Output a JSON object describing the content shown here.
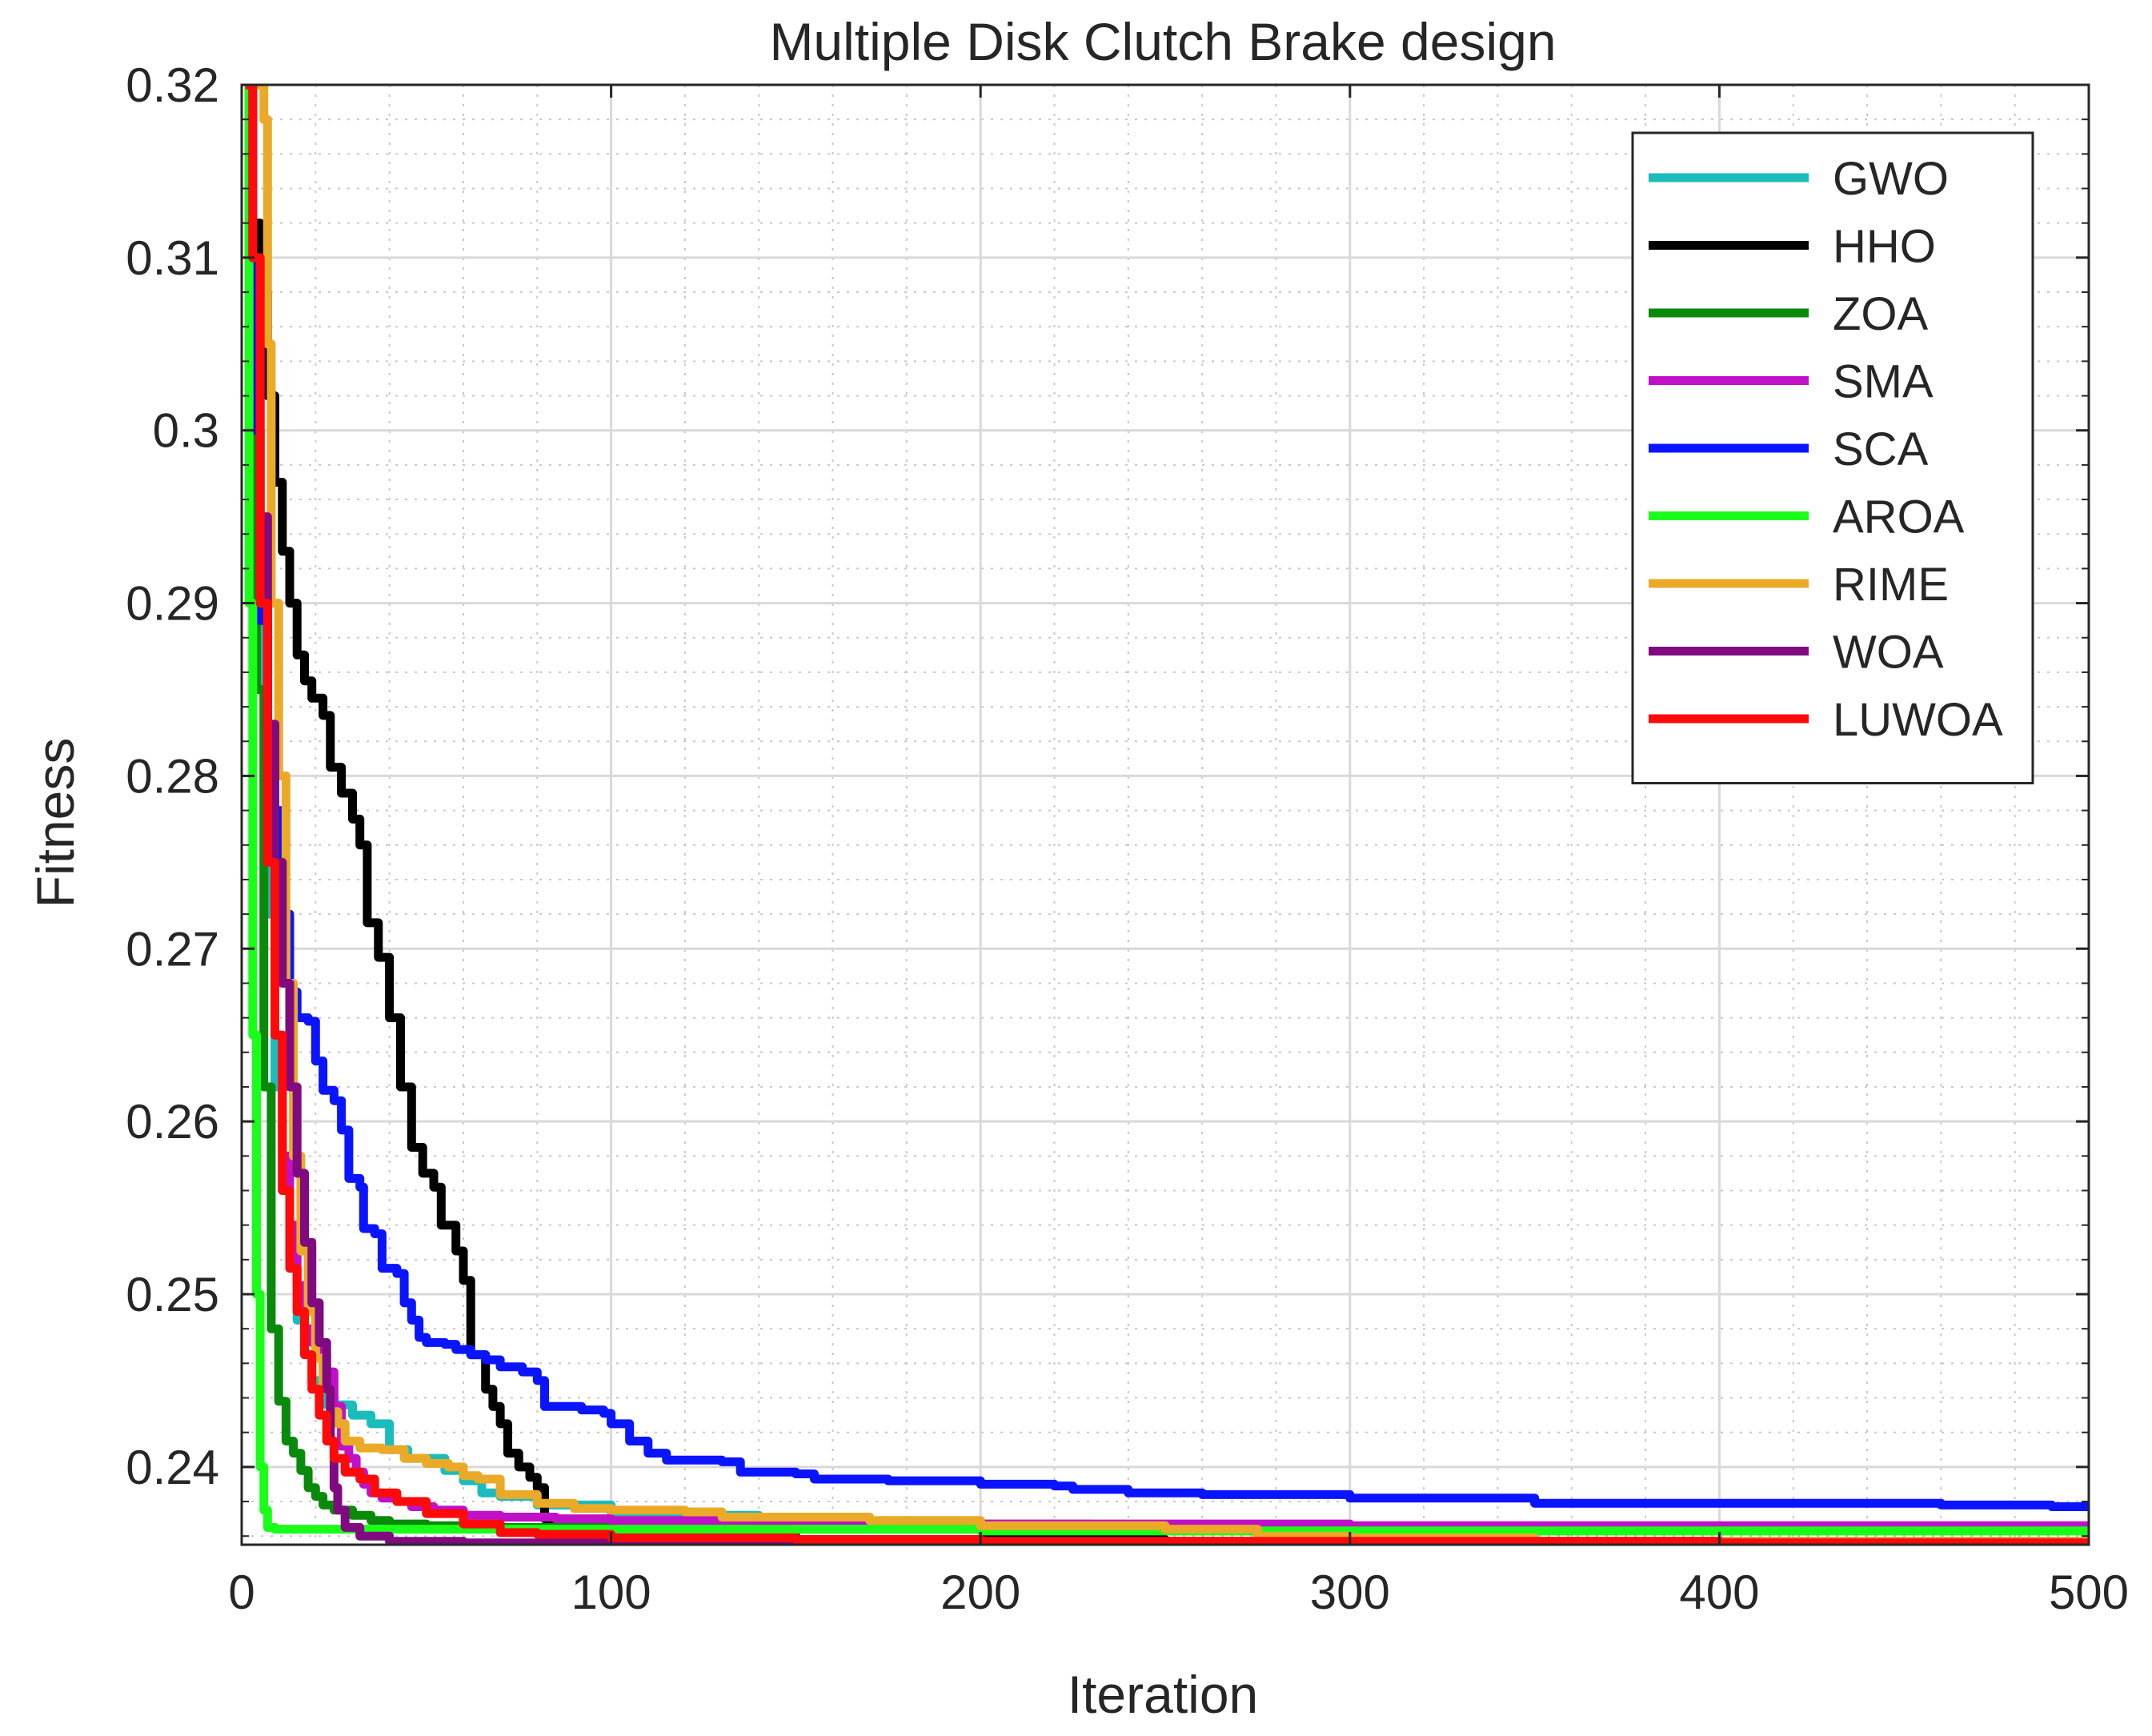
{
  "chart_data": {
    "type": "line",
    "title": "Multiple Disk Clutch Brake design",
    "xlabel": "Iteration",
    "ylabel": "Fitness",
    "xlim": [
      0,
      500
    ],
    "ylim": [
      0.2355,
      0.32
    ],
    "xticks": [
      0,
      100,
      200,
      300,
      400,
      500
    ],
    "yticks": [
      0.24,
      0.25,
      0.26,
      0.27,
      0.28,
      0.29,
      0.3,
      0.31,
      0.32
    ],
    "xtick_labels": [
      "0",
      "100",
      "200",
      "300",
      "400",
      "500"
    ],
    "ytick_labels": [
      "0.24",
      "0.25",
      "0.26",
      "0.27",
      "0.28",
      "0.29",
      "0.3",
      "0.31",
      "0.32"
    ],
    "grid": true,
    "minor_grid": true,
    "legend_position": "top-right",
    "series": [
      {
        "name": "GWO",
        "color": "#1abcbc",
        "points": [
          [
            1,
            0.32
          ],
          [
            3,
            0.3
          ],
          [
            5,
            0.285
          ],
          [
            7,
            0.272
          ],
          [
            9,
            0.262
          ],
          [
            11,
            0.256
          ],
          [
            13,
            0.2515
          ],
          [
            15,
            0.2485
          ],
          [
            17,
            0.2465
          ],
          [
            19,
            0.245
          ],
          [
            21,
            0.2442
          ],
          [
            23,
            0.2436
          ],
          [
            30,
            0.243
          ],
          [
            35,
            0.2425
          ],
          [
            40,
            0.241
          ],
          [
            45,
            0.2405
          ],
          [
            55,
            0.2398
          ],
          [
            60,
            0.2392
          ],
          [
            65,
            0.2385
          ],
          [
            70,
            0.2383
          ],
          [
            80,
            0.2378
          ],
          [
            100,
            0.2374
          ],
          [
            120,
            0.2372
          ],
          [
            140,
            0.2368
          ],
          [
            180,
            0.2367
          ],
          [
            230,
            0.2366
          ],
          [
            300,
            0.2365
          ],
          [
            400,
            0.2364
          ],
          [
            500,
            0.2364
          ]
        ]
      },
      {
        "name": "HHO",
        "color": "#000000",
        "points": [
          [
            1,
            0.32
          ],
          [
            3,
            0.312
          ],
          [
            5,
            0.308
          ],
          [
            7,
            0.302
          ],
          [
            9,
            0.297
          ],
          [
            11,
            0.293
          ],
          [
            13,
            0.29
          ],
          [
            15,
            0.287
          ],
          [
            17,
            0.2855
          ],
          [
            19,
            0.2845
          ],
          [
            22,
            0.2835
          ],
          [
            24,
            0.2805
          ],
          [
            27,
            0.279
          ],
          [
            30,
            0.2775
          ],
          [
            32,
            0.276
          ],
          [
            34,
            0.2715
          ],
          [
            37,
            0.2695
          ],
          [
            40,
            0.266
          ],
          [
            43,
            0.262
          ],
          [
            46,
            0.2585
          ],
          [
            49,
            0.257
          ],
          [
            52,
            0.2562
          ],
          [
            54,
            0.254
          ],
          [
            58,
            0.2525
          ],
          [
            60,
            0.2508
          ],
          [
            62,
            0.2465
          ],
          [
            66,
            0.2445
          ],
          [
            68,
            0.2435
          ],
          [
            70,
            0.2425
          ],
          [
            72,
            0.2408
          ],
          [
            75,
            0.24
          ],
          [
            78,
            0.2394
          ],
          [
            80,
            0.2388
          ],
          [
            82,
            0.237
          ],
          [
            84,
            0.2365
          ],
          [
            100,
            0.236
          ],
          [
            150,
            0.2358
          ],
          [
            250,
            0.2357
          ],
          [
            500,
            0.2357
          ]
        ]
      },
      {
        "name": "ZOA",
        "color": "#0a8a0a",
        "points": [
          [
            1,
            0.32
          ],
          [
            2,
            0.31
          ],
          [
            4,
            0.285
          ],
          [
            6,
            0.262
          ],
          [
            8,
            0.248
          ],
          [
            10,
            0.2438
          ],
          [
            12,
            0.2415
          ],
          [
            14,
            0.2408
          ],
          [
            16,
            0.2398
          ],
          [
            18,
            0.2388
          ],
          [
            20,
            0.2383
          ],
          [
            22,
            0.2378
          ],
          [
            25,
            0.2375
          ],
          [
            30,
            0.2372
          ],
          [
            35,
            0.2369
          ],
          [
            40,
            0.2367
          ],
          [
            50,
            0.2366
          ],
          [
            70,
            0.2365
          ],
          [
            100,
            0.2364
          ],
          [
            200,
            0.2363
          ],
          [
            500,
            0.2363
          ]
        ]
      },
      {
        "name": "SMA",
        "color": "#c010c8",
        "points": [
          [
            1,
            0.32
          ],
          [
            3,
            0.305
          ],
          [
            5,
            0.29
          ],
          [
            7,
            0.275
          ],
          [
            9,
            0.265
          ],
          [
            11,
            0.258
          ],
          [
            13,
            0.254
          ],
          [
            15,
            0.2505
          ],
          [
            17,
            0.248
          ],
          [
            19,
            0.2472
          ],
          [
            21,
            0.2465
          ],
          [
            23,
            0.2455
          ],
          [
            25,
            0.2435
          ],
          [
            27,
            0.2412
          ],
          [
            29,
            0.2405
          ],
          [
            31,
            0.2397
          ],
          [
            33,
            0.239
          ],
          [
            35,
            0.2385
          ],
          [
            38,
            0.2382
          ],
          [
            42,
            0.238
          ],
          [
            46,
            0.2377
          ],
          [
            52,
            0.2375
          ],
          [
            60,
            0.2372
          ],
          [
            70,
            0.2371
          ],
          [
            85,
            0.237
          ],
          [
            100,
            0.2369
          ],
          [
            150,
            0.2368
          ],
          [
            200,
            0.2367
          ],
          [
            300,
            0.2366
          ],
          [
            500,
            0.2366
          ]
        ]
      },
      {
        "name": "SCA",
        "color": "#0a14ff",
        "points": [
          [
            1,
            0.32
          ],
          [
            3,
            0.3
          ],
          [
            5,
            0.289
          ],
          [
            7,
            0.281
          ],
          [
            9,
            0.278
          ],
          [
            11,
            0.272
          ],
          [
            13,
            0.2675
          ],
          [
            15,
            0.266
          ],
          [
            18,
            0.2658
          ],
          [
            20,
            0.2635
          ],
          [
            22,
            0.2618
          ],
          [
            25,
            0.2612
          ],
          [
            27,
            0.2595
          ],
          [
            29,
            0.2567
          ],
          [
            32,
            0.2562
          ],
          [
            33,
            0.2538
          ],
          [
            36,
            0.2535
          ],
          [
            38,
            0.2515
          ],
          [
            42,
            0.2512
          ],
          [
            44,
            0.2495
          ],
          [
            46,
            0.2485
          ],
          [
            48,
            0.2475
          ],
          [
            50,
            0.2472
          ],
          [
            55,
            0.2471
          ],
          [
            58,
            0.2468
          ],
          [
            62,
            0.2465
          ],
          [
            66,
            0.2462
          ],
          [
            70,
            0.2458
          ],
          [
            76,
            0.2455
          ],
          [
            80,
            0.245
          ],
          [
            82,
            0.2435
          ],
          [
            88,
            0.2435
          ],
          [
            92,
            0.2433
          ],
          [
            98,
            0.2431
          ],
          [
            100,
            0.2425
          ],
          [
            105,
            0.2415
          ],
          [
            110,
            0.2408
          ],
          [
            115,
            0.2404
          ],
          [
            130,
            0.2403
          ],
          [
            135,
            0.2397
          ],
          [
            150,
            0.2396
          ],
          [
            155,
            0.2393
          ],
          [
            175,
            0.2392
          ],
          [
            200,
            0.239
          ],
          [
            220,
            0.2389
          ],
          [
            225,
            0.2387
          ],
          [
            240,
            0.2385
          ],
          [
            260,
            0.2384
          ],
          [
            280,
            0.2384
          ],
          [
            300,
            0.2382
          ],
          [
            330,
            0.2382
          ],
          [
            350,
            0.2379
          ],
          [
            400,
            0.2379
          ],
          [
            460,
            0.2378
          ],
          [
            490,
            0.2377
          ],
          [
            500,
            0.2377
          ]
        ]
      },
      {
        "name": "AROA",
        "color": "#1aff1a",
        "points": [
          [
            1,
            0.32
          ],
          [
            2,
            0.29
          ],
          [
            3,
            0.265
          ],
          [
            4,
            0.25
          ],
          [
            5,
            0.24
          ],
          [
            6,
            0.2375
          ],
          [
            7,
            0.2365
          ],
          [
            9,
            0.2364
          ],
          [
            50,
            0.2364
          ],
          [
            100,
            0.2364
          ],
          [
            200,
            0.2363
          ],
          [
            300,
            0.2363
          ],
          [
            400,
            0.2363
          ],
          [
            500,
            0.2363
          ]
        ]
      },
      {
        "name": "RIME",
        "color": "#eaaa28",
        "points": [
          [
            2,
            0.32
          ],
          [
            4,
            0.32
          ],
          [
            6,
            0.318
          ],
          [
            7,
            0.305
          ],
          [
            8,
            0.29
          ],
          [
            10,
            0.28
          ],
          [
            12,
            0.268
          ],
          [
            14,
            0.258
          ],
          [
            16,
            0.2525
          ],
          [
            18,
            0.249
          ],
          [
            20,
            0.2463
          ],
          [
            22,
            0.2445
          ],
          [
            24,
            0.2432
          ],
          [
            26,
            0.2425
          ],
          [
            28,
            0.2415
          ],
          [
            32,
            0.2411
          ],
          [
            38,
            0.241
          ],
          [
            44,
            0.2405
          ],
          [
            50,
            0.2402
          ],
          [
            56,
            0.24
          ],
          [
            60,
            0.2395
          ],
          [
            64,
            0.2393
          ],
          [
            70,
            0.2384
          ],
          [
            80,
            0.2379
          ],
          [
            90,
            0.2376
          ],
          [
            100,
            0.2375
          ],
          [
            120,
            0.2374
          ],
          [
            130,
            0.2371
          ],
          [
            150,
            0.2371
          ],
          [
            170,
            0.2369
          ],
          [
            200,
            0.2366
          ],
          [
            250,
            0.2364
          ],
          [
            275,
            0.236
          ],
          [
            300,
            0.2359
          ],
          [
            350,
            0.2357
          ],
          [
            400,
            0.2357
          ],
          [
            500,
            0.2356
          ]
        ]
      },
      {
        "name": "WOA",
        "color": "#800a80",
        "points": [
          [
            1,
            0.32
          ],
          [
            3,
            0.31
          ],
          [
            5,
            0.295
          ],
          [
            7,
            0.283
          ],
          [
            9,
            0.275
          ],
          [
            11,
            0.268
          ],
          [
            13,
            0.262
          ],
          [
            15,
            0.257
          ],
          [
            17,
            0.253
          ],
          [
            19,
            0.2495
          ],
          [
            21,
            0.2472
          ],
          [
            23,
            0.2445
          ],
          [
            24,
            0.2415
          ],
          [
            25,
            0.2388
          ],
          [
            26,
            0.2375
          ],
          [
            28,
            0.2365
          ],
          [
            32,
            0.236
          ],
          [
            40,
            0.2357
          ],
          [
            60,
            0.2356
          ],
          [
            100,
            0.2356
          ],
          [
            200,
            0.2356
          ],
          [
            500,
            0.2356
          ]
        ]
      },
      {
        "name": "LUWOA",
        "color": "#ff0a0a",
        "points": [
          [
            1,
            0.32
          ],
          [
            3,
            0.31
          ],
          [
            5,
            0.29
          ],
          [
            7,
            0.275
          ],
          [
            9,
            0.265
          ],
          [
            11,
            0.256
          ],
          [
            13,
            0.2515
          ],
          [
            15,
            0.249
          ],
          [
            17,
            0.2465
          ],
          [
            19,
            0.2445
          ],
          [
            21,
            0.243
          ],
          [
            23,
            0.2415
          ],
          [
            25,
            0.2405
          ],
          [
            28,
            0.2397
          ],
          [
            32,
            0.2393
          ],
          [
            36,
            0.2385
          ],
          [
            42,
            0.238
          ],
          [
            50,
            0.2373
          ],
          [
            60,
            0.2367
          ],
          [
            70,
            0.2362
          ],
          [
            80,
            0.2361
          ],
          [
            100,
            0.2359
          ],
          [
            150,
            0.2358
          ],
          [
            200,
            0.2357
          ],
          [
            300,
            0.2357
          ],
          [
            400,
            0.2356
          ],
          [
            500,
            0.2355
          ]
        ]
      }
    ]
  }
}
